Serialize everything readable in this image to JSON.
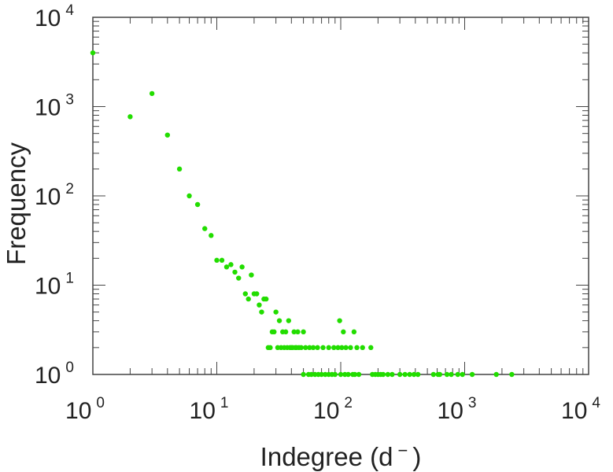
{
  "chart_data": {
    "type": "scatter",
    "xlabel": "Indegree (d",
    "xlabel_superscript": "−",
    "xlabel_close": ")",
    "ylabel": "Frequency",
    "xscale": "log",
    "yscale": "log",
    "xlim": [
      1,
      10000
    ],
    "ylim": [
      1,
      10000
    ],
    "grid": false,
    "marker_color": "#22dd00",
    "x_ticks": [
      {
        "base": "10",
        "exp": "0",
        "value": 1
      },
      {
        "base": "10",
        "exp": "1",
        "value": 10
      },
      {
        "base": "10",
        "exp": "2",
        "value": 100
      },
      {
        "base": "10",
        "exp": "3",
        "value": 1000
      },
      {
        "base": "10",
        "exp": "4",
        "value": 10000
      }
    ],
    "y_ticks": [
      {
        "base": "10",
        "exp": "0",
        "value": 1
      },
      {
        "base": "10",
        "exp": "1",
        "value": 10
      },
      {
        "base": "10",
        "exp": "2",
        "value": 100
      },
      {
        "base": "10",
        "exp": "3",
        "value": 1000
      },
      {
        "base": "10",
        "exp": "4",
        "value": 10000
      }
    ],
    "points": [
      [
        1,
        4000
      ],
      [
        2,
        770
      ],
      [
        3,
        1400
      ],
      [
        4,
        480
      ],
      [
        5,
        200
      ],
      [
        6,
        100
      ],
      [
        7,
        80
      ],
      [
        8,
        43
      ],
      [
        9,
        36
      ],
      [
        10,
        19
      ],
      [
        11,
        19
      ],
      [
        12,
        16
      ],
      [
        13,
        17
      ],
      [
        14,
        14
      ],
      [
        15,
        12
      ],
      [
        16,
        16
      ],
      [
        17,
        8
      ],
      [
        18,
        7
      ],
      [
        19,
        13
      ],
      [
        20,
        8
      ],
      [
        21,
        8
      ],
      [
        22,
        6
      ],
      [
        23,
        5
      ],
      [
        24,
        7
      ],
      [
        25,
        7
      ],
      [
        26,
        2
      ],
      [
        27,
        2
      ],
      [
        28,
        3
      ],
      [
        29,
        3
      ],
      [
        30,
        5
      ],
      [
        31,
        2
      ],
      [
        32,
        4
      ],
      [
        33,
        2
      ],
      [
        34,
        3
      ],
      [
        35,
        2
      ],
      [
        36,
        3
      ],
      [
        37,
        2
      ],
      [
        38,
        4
      ],
      [
        39,
        2
      ],
      [
        40,
        2
      ],
      [
        41,
        2
      ],
      [
        42,
        3
      ],
      [
        43,
        2
      ],
      [
        44,
        2
      ],
      [
        45,
        3
      ],
      [
        46,
        2
      ],
      [
        48,
        2
      ],
      [
        50,
        1
      ],
      [
        50,
        3
      ],
      [
        52,
        2
      ],
      [
        55,
        1
      ],
      [
        56,
        2
      ],
      [
        58,
        1
      ],
      [
        60,
        2
      ],
      [
        62,
        1
      ],
      [
        65,
        2
      ],
      [
        66,
        1
      ],
      [
        70,
        1
      ],
      [
        72,
        2
      ],
      [
        75,
        1
      ],
      [
        80,
        1
      ],
      [
        80,
        2
      ],
      [
        85,
        1
      ],
      [
        88,
        2
      ],
      [
        90,
        1
      ],
      [
        95,
        2
      ],
      [
        98,
        4
      ],
      [
        100,
        1
      ],
      [
        102,
        2
      ],
      [
        105,
        3
      ],
      [
        108,
        1
      ],
      [
        110,
        2
      ],
      [
        115,
        1
      ],
      [
        120,
        2
      ],
      [
        125,
        1
      ],
      [
        128,
        3
      ],
      [
        130,
        1
      ],
      [
        135,
        2
      ],
      [
        140,
        1
      ],
      [
        150,
        2
      ],
      [
        175,
        2
      ],
      [
        180,
        1
      ],
      [
        190,
        1
      ],
      [
        200,
        1
      ],
      [
        210,
        1
      ],
      [
        220,
        1
      ],
      [
        240,
        1
      ],
      [
        260,
        1
      ],
      [
        300,
        1
      ],
      [
        330,
        1
      ],
      [
        360,
        1
      ],
      [
        390,
        1
      ],
      [
        420,
        1
      ],
      [
        560,
        1
      ],
      [
        610,
        1
      ],
      [
        630,
        1
      ],
      [
        720,
        1
      ],
      [
        780,
        1
      ],
      [
        880,
        1
      ],
      [
        960,
        1
      ],
      [
        1150,
        1
      ],
      [
        1800,
        1
      ],
      [
        2400,
        1
      ]
    ]
  }
}
